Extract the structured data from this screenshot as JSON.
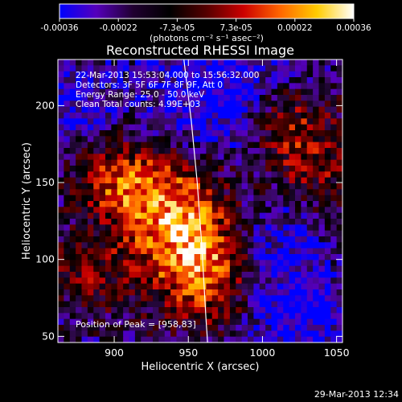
{
  "colorbar": {
    "ticks": [
      "-0.00036",
      "-0.00022",
      "-7.3e-05",
      "7.3e-05",
      "0.00022",
      "0.00036"
    ],
    "units": "(photons cm⁻² s⁻¹ asec⁻²)",
    "colors": [
      "#0000ff",
      "#5500bb",
      "#200030",
      "#000000",
      "#550000",
      "#cc0000",
      "#ff6600",
      "#ffcc00",
      "#ffffff"
    ]
  },
  "chart_data": {
    "type": "heatmap",
    "title": "Reconstructed RHESSI Image",
    "xlabel": "Heliocentric X (arcsec)",
    "ylabel": "Heliocentric Y (arcsec)",
    "xlim": [
      862,
      1054
    ],
    "ylim": [
      46,
      230
    ],
    "x_ticks": [
      900,
      950,
      1000,
      1050
    ],
    "y_ticks": [
      50,
      100,
      150,
      200
    ],
    "info_lines": [
      "22-Mar-2013 15:53:04.000 to 15:56:32.000",
      "Detectors: 3F 5F 6F 7F 8F 9F, Att 0",
      "Energy Range: 25.0 - 50.0 keV",
      "Clean     Total counts: 4.99E+03"
    ],
    "peak_label": "Position of Peak = [958,83]",
    "peak": [
      958,
      83
    ],
    "limb_arc": [
      [
        947,
        230
      ],
      [
        952,
        190
      ],
      [
        956,
        150
      ],
      [
        959,
        110
      ],
      [
        962,
        60
      ],
      [
        963,
        46
      ]
    ]
  },
  "footer": {
    "timestamp": "29-Mar-2013 12:34"
  }
}
